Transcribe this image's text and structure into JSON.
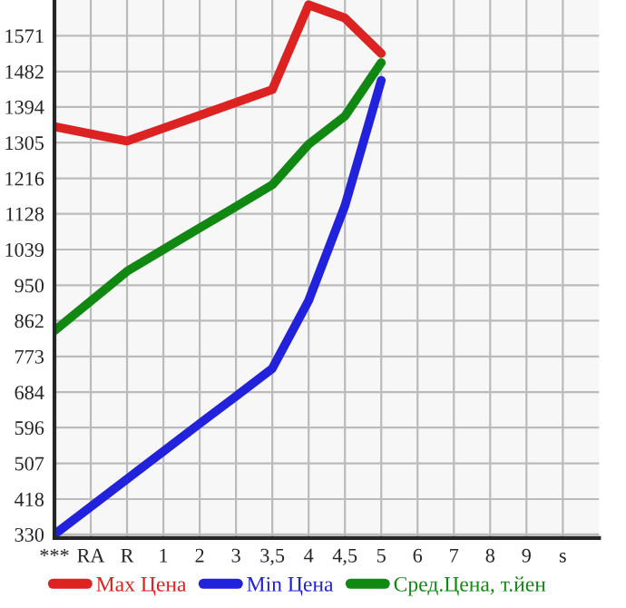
{
  "chart_data": {
    "type": "line",
    "categories": [
      "***",
      "RA",
      "R",
      "1",
      "2",
      "3",
      "3,5",
      "4",
      "4,5",
      "5",
      "6",
      "7",
      "8",
      "9",
      "s"
    ],
    "series": [
      {
        "name": "Max Цена",
        "color": "#dd2222",
        "values": [
          1345,
          1327,
          1309,
          1341,
          1373,
          1405,
          1437,
          1648,
          1615,
          1527,
          null,
          null,
          null,
          null,
          null
        ]
      },
      {
        "name": "Min Цена",
        "color": "#2222dd",
        "values": [
          330,
          399,
          468,
          537,
          606,
          674,
          743,
          912,
          1148,
          1460,
          null,
          null,
          null,
          null,
          null
        ]
      },
      {
        "name": "Сред.Цена, т.йен",
        "color": "#118811",
        "values": [
          837,
          911,
          985,
          1039,
          1093,
          1146,
          1200,
          1301,
          1371,
          1504,
          null,
          null,
          null,
          null,
          null
        ]
      }
    ],
    "ylim": [
      321,
      1660
    ],
    "yticks": [
      330,
      418,
      507,
      596,
      684,
      773,
      862,
      950,
      1039,
      1128,
      1216,
      1305,
      1394,
      1482,
      1571
    ],
    "grid": true,
    "legend": "bottom",
    "line_style": "solid",
    "marker": "none"
  }
}
